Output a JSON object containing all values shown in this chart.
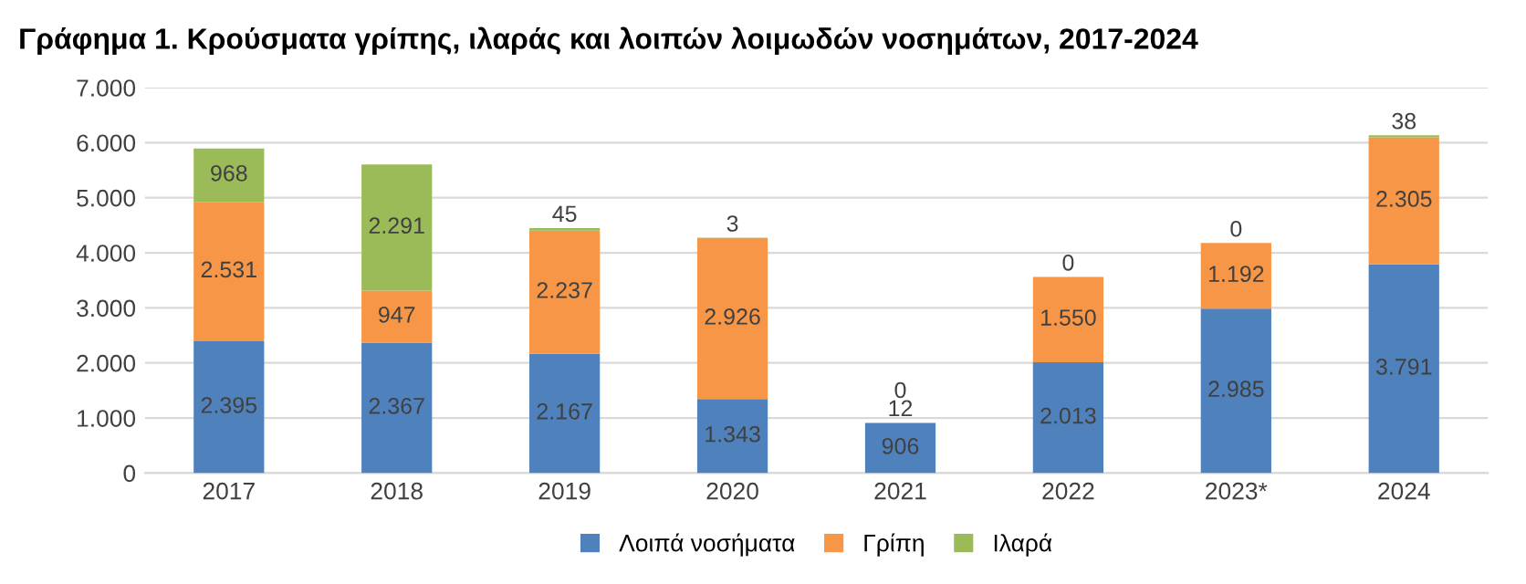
{
  "chart_data": {
    "type": "bar",
    "stacked": true,
    "title": "Γράφημα 1. Κρούσματα γρίπης, ιλαράς και λοιπών λοιμωδών νοσημάτων, 2017-2024",
    "categories": [
      "2017",
      "2018",
      "2019",
      "2020",
      "2021",
      "2022",
      "2023*",
      "2024"
    ],
    "series": [
      {
        "name": "Λοιπά νοσήματα",
        "color": "#4f81bd",
        "values": [
          2395,
          2367,
          2167,
          1343,
          906,
          2013,
          2985,
          3791
        ],
        "value_labels": [
          "2.395",
          "2.367",
          "2.167",
          "1.343",
          "906",
          "2.013",
          "2.985",
          "3.791"
        ]
      },
      {
        "name": "Γρίπη",
        "color": "#f79646",
        "values": [
          2531,
          947,
          2237,
          2926,
          12,
          1550,
          1192,
          2305
        ],
        "value_labels": [
          "2.531",
          "947",
          "2.237",
          "2.926",
          "12",
          "1.550",
          "1.192",
          "2.305"
        ]
      },
      {
        "name": "Ιλαρά",
        "color": "#9bbb59",
        "values": [
          968,
          2291,
          45,
          3,
          0,
          0,
          0,
          38
        ],
        "value_labels": [
          "968",
          "2.291",
          "45",
          "3",
          "0",
          "0",
          "0",
          "38"
        ]
      }
    ],
    "ylim": [
      0,
      7000
    ],
    "yticks": [
      0,
      {
        "value": 1000,
        "label": "1.000"
      },
      {
        "value": 2000,
        "label": "2.000"
      },
      {
        "value": 3000,
        "label": "3.000"
      },
      {
        "value": 4000,
        "label": "4.000"
      },
      {
        "value": 5000,
        "label": "5.000"
      },
      {
        "value": 6000,
        "label": "6.000"
      },
      {
        "value": 7000,
        "label": "7.000"
      }
    ],
    "grid": "y",
    "legend": "bottom"
  }
}
